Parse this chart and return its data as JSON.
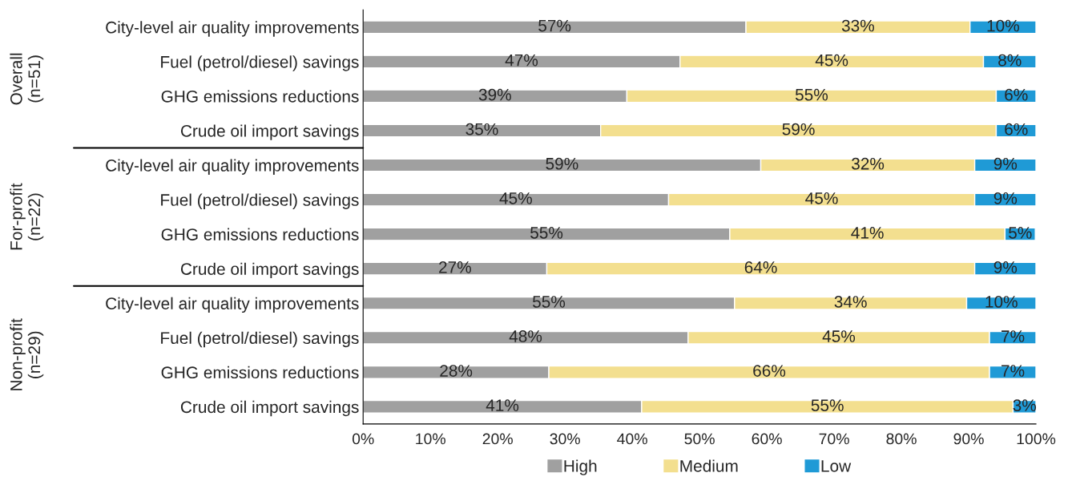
{
  "chart_data": {
    "type": "bar",
    "orientation": "horizontal",
    "stacked": true,
    "categories": [
      "City-level air quality improvements",
      "Fuel (petrol/diesel) savings",
      "GHG emissions reductions",
      "Crude oil import savings",
      "City-level air quality improvements",
      "Fuel (petrol/diesel) savings",
      "GHG emissions reductions",
      "Crude oil import savings",
      "City-level air quality improvements",
      "Fuel (petrol/diesel) savings",
      "GHG emissions reductions",
      "Crude oil import savings"
    ],
    "series": [
      {
        "name": "High",
        "color": "#a0a0a0",
        "values": [
          56.9,
          47.1,
          39.2,
          35.3,
          59.1,
          45.4,
          54.5,
          27.3,
          55.2,
          48.3,
          27.6,
          41.4
        ],
        "value_labels": [
          "57%",
          "47%",
          "39%",
          "35%",
          "59%",
          "45%",
          "55%",
          "27%",
          "55%",
          "48%",
          "28%",
          "41%"
        ]
      },
      {
        "name": "Medium",
        "color": "#f3df8f",
        "values": [
          33.3,
          45.1,
          54.9,
          58.8,
          31.8,
          45.5,
          40.9,
          63.6,
          34.5,
          44.8,
          65.5,
          55.2
        ],
        "value_labels": [
          "33%",
          "45%",
          "55%",
          "59%",
          "32%",
          "45%",
          "41%",
          "64%",
          "34%",
          "45%",
          "66%",
          "55%"
        ]
      },
      {
        "name": "Low",
        "color": "#1f9ad6",
        "values": [
          9.8,
          7.8,
          5.9,
          5.9,
          9.1,
          9.1,
          4.5,
          9.1,
          10.3,
          6.9,
          6.9,
          3.4
        ],
        "value_labels": [
          "10%",
          "8%",
          "6%",
          "6%",
          "9%",
          "9%",
          "5%",
          "9%",
          "10%",
          "7%",
          "7%",
          "3%"
        ]
      }
    ],
    "xlim": [
      0,
      100
    ],
    "xticks": [
      {
        "value": 0,
        "label": "0%"
      },
      {
        "value": 10,
        "label": "10%"
      },
      {
        "value": 20,
        "label": "20%"
      },
      {
        "value": 30,
        "label": "30%"
      },
      {
        "value": 40,
        "label": "40%"
      },
      {
        "value": 50,
        "label": "50%"
      },
      {
        "value": 60,
        "label": "60%"
      },
      {
        "value": 70,
        "label": "70%"
      },
      {
        "value": 80,
        "label": "80%"
      },
      {
        "value": 90,
        "label": "90%"
      },
      {
        "value": 100,
        "label": "100%"
      }
    ],
    "annotations": [
      "Overall\n(n=51)",
      "For-profit\n(n=22)",
      "Non-profit\n(n=29)"
    ],
    "grid": false,
    "legend": "bottom"
  }
}
